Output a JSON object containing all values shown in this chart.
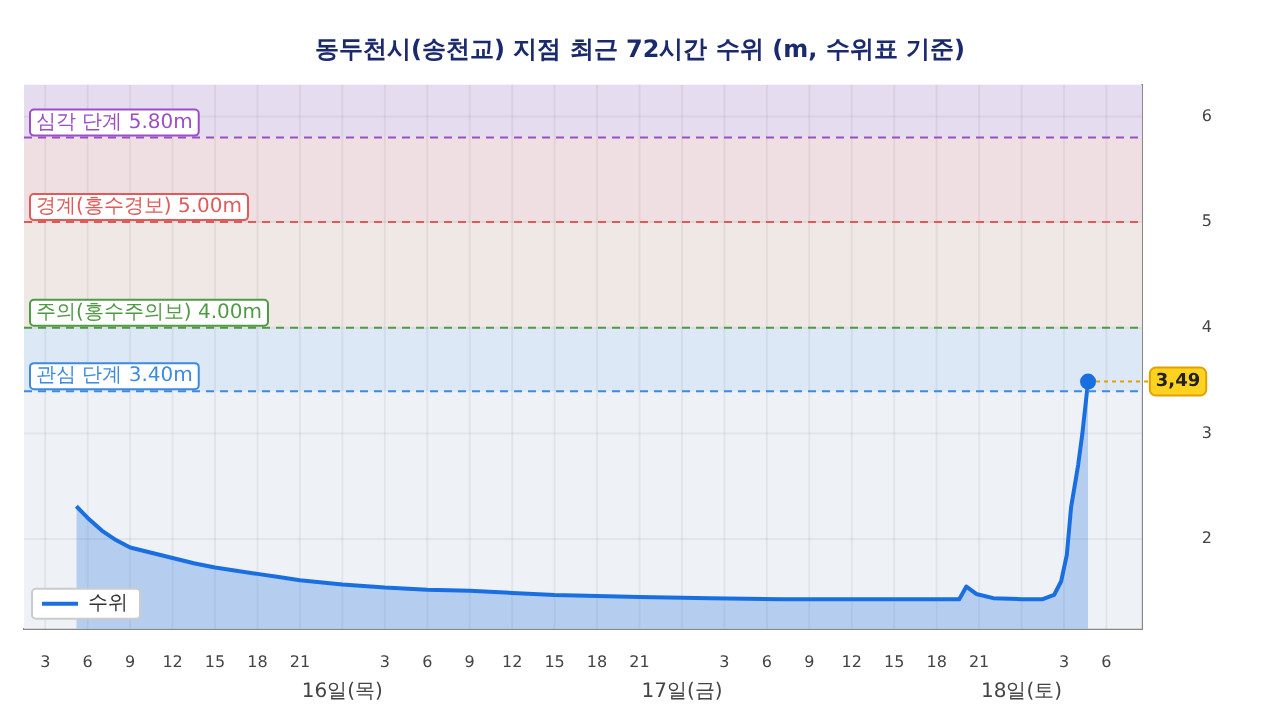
{
  "chart_data": {
    "type": "area",
    "title": "동두천시(송천교) 지점 최근 72시간 수위 (m, 수위표 기준)",
    "x": [
      "--05-15T05:12",
      "--05-15T06:00",
      "--05-15T07:00",
      "--05-15T08:00",
      "--05-15T09:00",
      "--05-15T10:30",
      "--05-15T12:00",
      "--05-15T13:30",
      "--05-15T15:00",
      "--05-15T16:30",
      "--05-15T18:00",
      "--05-15T19:30",
      "--05-15T21:00",
      "--05-16T00:00",
      "--05-16T03:00",
      "--05-16T06:00",
      "--05-16T09:00",
      "--05-16T12:00",
      "--05-16T15:00",
      "--05-16T18:00",
      "--05-16T21:00",
      "--05-17T02:00",
      "--05-17T07:00",
      "--05-17T12:00",
      "--05-17T17:00",
      "--05-17T19:36",
      "--05-17T20:06",
      "--05-17T20:48",
      "--05-17T22:00",
      "--05-18T00:00",
      "--05-18T01:30",
      "--05-18T02:18",
      "--05-18T02:48",
      "--05-18T03:12",
      "--05-18T03:30",
      "--05-18T04:00",
      "--05-18T04:18",
      "--05-18T04:42"
    ],
    "series": [
      {
        "name": "수위",
        "color": "#1a6fe0",
        "values": [
          2.31,
          2.2,
          2.08,
          1.99,
          1.92,
          1.87,
          1.82,
          1.77,
          1.73,
          1.7,
          1.67,
          1.64,
          1.61,
          1.57,
          1.54,
          1.52,
          1.51,
          1.49,
          1.47,
          1.46,
          1.45,
          1.44,
          1.43,
          1.43,
          1.43,
          1.43,
          1.55,
          1.48,
          1.44,
          1.43,
          1.43,
          1.47,
          1.6,
          1.85,
          2.3,
          2.7,
          3.0,
          3.49
        ]
      }
    ],
    "xlim": [
      "--05-15T01:30",
      "--05-18T08:30"
    ],
    "xticks": [
      {
        "value": "--05-15T03:00",
        "label": "3"
      },
      {
        "value": "--05-15T06:00",
        "label": "6"
      },
      {
        "value": "--05-15T09:00",
        "label": "9"
      },
      {
        "value": "--05-15T12:00",
        "label": "12"
      },
      {
        "value": "--05-15T15:00",
        "label": "15"
      },
      {
        "value": "--05-15T18:00",
        "label": "18"
      },
      {
        "value": "--05-15T21:00",
        "label": "21"
      },
      {
        "value": "--05-16T00:00",
        "label": null
      },
      {
        "value": "--05-16T03:00",
        "label": "3"
      },
      {
        "value": "--05-16T06:00",
        "label": "6"
      },
      {
        "value": "--05-16T09:00",
        "label": "9"
      },
      {
        "value": "--05-16T12:00",
        "label": "12"
      },
      {
        "value": "--05-16T15:00",
        "label": "15"
      },
      {
        "value": "--05-16T18:00",
        "label": "18"
      },
      {
        "value": "--05-16T21:00",
        "label": "21"
      },
      {
        "value": "--05-17T00:00",
        "label": null
      },
      {
        "value": "--05-17T03:00",
        "label": "3"
      },
      {
        "value": "--05-17T06:00",
        "label": "6"
      },
      {
        "value": "--05-17T09:00",
        "label": "9"
      },
      {
        "value": "--05-17T12:00",
        "label": "12"
      },
      {
        "value": "--05-17T15:00",
        "label": "15"
      },
      {
        "value": "--05-17T18:00",
        "label": "18"
      },
      {
        "value": "--05-17T21:00",
        "label": "21"
      },
      {
        "value": "--05-18T00:00",
        "label": null
      },
      {
        "value": "--05-18T03:00",
        "label": "3"
      },
      {
        "value": "--05-18T06:00",
        "label": "6"
      }
    ],
    "x2lim": [
      "--05-15T01:30",
      "--05-18T08:30"
    ],
    "x2ticks": [
      {
        "value": "--05-16T00:00",
        "label": "16일(목)"
      },
      {
        "value": "--05-17T00:00",
        "label": "17일(금)"
      },
      {
        "value": "--05-18T00:00",
        "label": "18일(토)"
      }
    ],
    "ylim": [
      1.15,
      6.3
    ],
    "yticks": [
      2,
      3,
      4,
      5,
      6
    ],
    "bands": [
      {
        "axis": "y",
        "from": 3.4,
        "to": 4.0,
        "color": "#dce8f5"
      },
      {
        "axis": "y",
        "from": 4.0,
        "to": 5.0,
        "color": "#efe8e4"
      },
      {
        "axis": "y",
        "from": 5.0,
        "to": 5.8,
        "color": "#f0dfe2"
      },
      {
        "axis": "y",
        "from": 5.8,
        "to": 6.3,
        "color": "#e6dcef"
      }
    ],
    "ref_lines": [
      {
        "axis": "y",
        "value": 5.8,
        "label": "심각 단계 5.80m",
        "color": "#9b4fc6",
        "line_style": "dashed"
      },
      {
        "axis": "y",
        "value": 5.0,
        "label": "경계(홍수경보) 5.00m",
        "color": "#e05a5a",
        "line_style": "dashed"
      },
      {
        "axis": "y",
        "value": 4.0,
        "label": "주의(홍수주의보) 4.00m",
        "color": "#4f9a45",
        "line_style": "dashed"
      },
      {
        "axis": "y",
        "value": 3.4,
        "label": "관심 단계 3.40m",
        "color": "#3d8ae0",
        "line_style": "dashed"
      }
    ],
    "annotations": [
      {
        "text": "3,49",
        "x": "--05-18T04:42",
        "y": 3.49
      }
    ],
    "grid": true,
    "legend": "bottom left"
  }
}
